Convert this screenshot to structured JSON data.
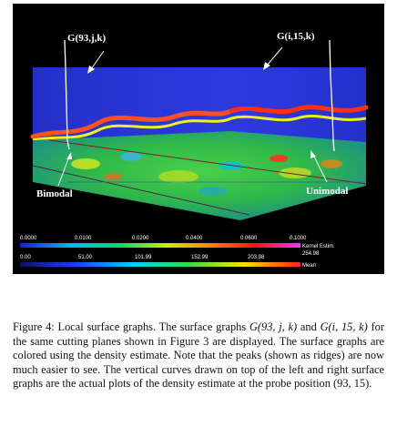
{
  "figure": {
    "labels": {
      "left_plane": "G(93,j,k)",
      "right_plane": "G(i,15,k)",
      "bimodal": "Bimodal",
      "unimodal": "Unimodal"
    },
    "colorbar_kernel": {
      "ticks": [
        "0.0000",
        "0.0100",
        "0.0200",
        "0.0400",
        "0.0600",
        "0.1000"
      ],
      "name_line1": "Kernel Estim.",
      "name_line2": "254.98"
    },
    "colorbar_mean": {
      "ticks": [
        "0.00",
        "51.00",
        "101.99",
        "152.99",
        "203.98"
      ],
      "name": "Mean"
    },
    "colors": {
      "background": "#000000",
      "plane_blue": "#2a33d8",
      "floor_green": "#33c04a",
      "label_white": "#ffffff"
    }
  },
  "caption": {
    "figure_label": "Figure 4:",
    "title": "Local surface graphs.",
    "s1_a": "The surface graphs ",
    "s1_m1": "G(93, j, k)",
    "s1_b": " and ",
    "s1_m2": "G(i, 15, k)",
    "s1_c": " for the same cutting planes shown in Figure 3 are displayed. The surface graphs are colored using the density estimate. Note that the peaks (shown as ridges) are now much easier to see. The vertical curves drawn on top of the left and right surface graphs are the actual plots of the density estimate at the probe position ",
    "s1_m3": "(93, 15)",
    "s1_d": "."
  }
}
